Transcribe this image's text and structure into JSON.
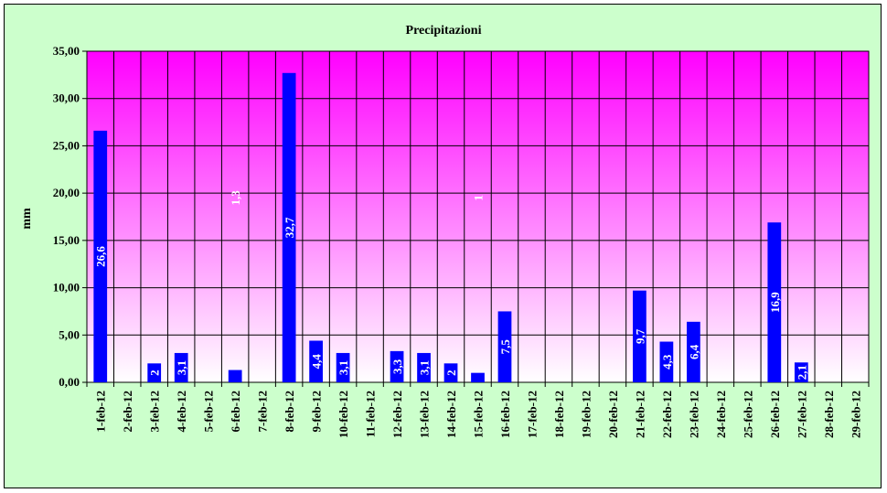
{
  "chart_data": {
    "type": "bar",
    "title": "Precipitazioni",
    "xlabel": "",
    "ylabel": "mm",
    "ylim": [
      0,
      35
    ],
    "yticks": [
      "0,00",
      "5,00",
      "10,00",
      "15,00",
      "20,00",
      "25,00",
      "30,00",
      "35,00"
    ],
    "ytick_values": [
      0,
      5,
      10,
      15,
      20,
      25,
      30,
      35
    ],
    "grid": true,
    "categories": [
      "1-feb-12",
      "2-feb-12",
      "3-feb-12",
      "4-feb-12",
      "5-feb-12",
      "6-feb-12",
      "7-feb-12",
      "8-feb-12",
      "9-feb-12",
      "10-feb-12",
      "11-feb-12",
      "12-feb-12",
      "13-feb-12",
      "14-feb-12",
      "15-feb-12",
      "16-feb-12",
      "17-feb-12",
      "18-feb-12",
      "19-feb-12",
      "20-feb-12",
      "21-feb-12",
      "22-feb-12",
      "23-feb-12",
      "24-feb-12",
      "25-feb-12",
      "26-feb-12",
      "27-feb-12",
      "28-feb-12",
      "29-feb-12"
    ],
    "values": [
      26.6,
      0,
      2,
      3.1,
      0,
      1.3,
      0,
      32.7,
      4.4,
      3.1,
      0,
      3.3,
      3.1,
      2,
      1,
      7.5,
      0,
      0,
      0,
      0,
      9.7,
      4.3,
      6.4,
      0,
      0,
      16.9,
      2.1,
      0,
      0
    ],
    "data_labels": [
      "26,6",
      "",
      "2",
      "3,1",
      "",
      "1,3",
      "",
      "32,7",
      "4,4",
      "3,1",
      "",
      "3,3",
      "3,1",
      "2",
      "1",
      "7,5",
      "",
      "",
      "",
      "",
      "9,7",
      "4,3",
      "6,4",
      "",
      "",
      "16,9",
      "2,1",
      "",
      ""
    ],
    "colors": {
      "bar": "#0000ff",
      "plot_top": "#ff00ff",
      "plot_bottom": "#ffffff",
      "background": "#ccffcc",
      "grid": "#000000",
      "data_label": "#ffffff"
    }
  }
}
